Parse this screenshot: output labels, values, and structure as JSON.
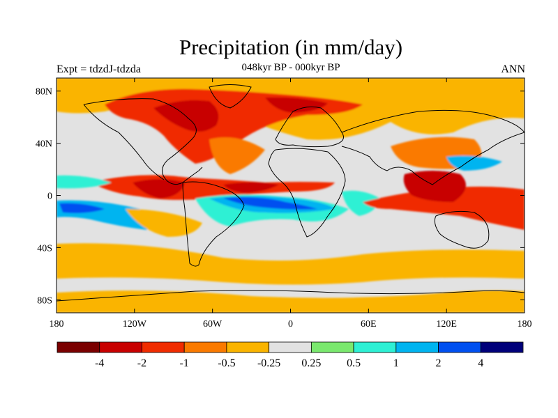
{
  "header": {
    "title": "Precipitation (in mm/day)",
    "subtitle": "048kyr BP - 000kyr BP",
    "left_label": "Expt = tdzdJ-tdzda",
    "right_label": "ANN"
  },
  "axes": {
    "x_ticks": [
      {
        "label": "180",
        "lon": -180
      },
      {
        "label": "120W",
        "lon": -120
      },
      {
        "label": "60W",
        "lon": -60
      },
      {
        "label": "0",
        "lon": 0
      },
      {
        "label": "60E",
        "lon": 60
      },
      {
        "label": "120E",
        "lon": 120
      },
      {
        "label": "180",
        "lon": 180
      }
    ],
    "y_ticks": [
      {
        "label": "80N",
        "lat": 80
      },
      {
        "label": "40N",
        "lat": 40
      },
      {
        "label": "0",
        "lat": 0
      },
      {
        "label": "40S",
        "lat": -40
      },
      {
        "label": "80S",
        "lat": -80
      }
    ],
    "lon_range": [
      -180,
      180
    ],
    "lat_range": [
      -90,
      90
    ]
  },
  "colorbar": {
    "colors": [
      "#7a0000",
      "#c80000",
      "#f02c00",
      "#fa7a00",
      "#fab400",
      "#e2e2e2",
      "#7ae86e",
      "#2ef0d4",
      "#00b4f0",
      "#0050f0",
      "#00007a"
    ],
    "labels": [
      "-4",
      "-2",
      "-1",
      "-0.5",
      "-0.25",
      "0.25",
      "0.5",
      "1",
      "2",
      "4"
    ]
  },
  "map_colors": {
    "background": "#e2e2e2",
    "coast": "#000000"
  }
}
